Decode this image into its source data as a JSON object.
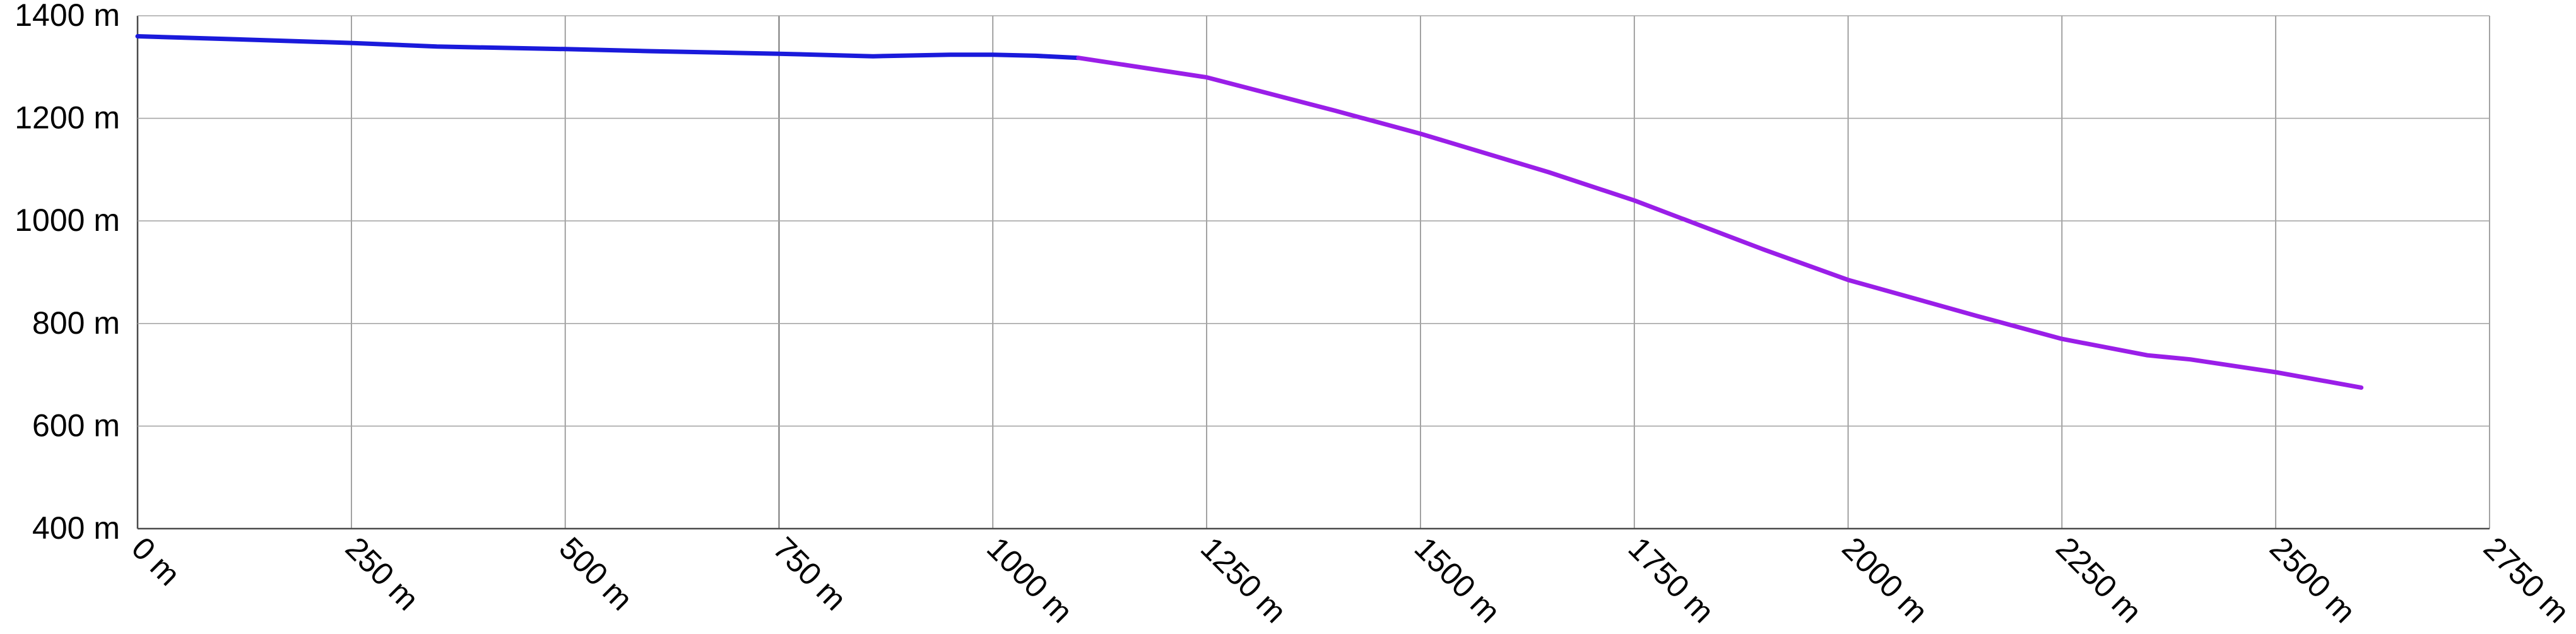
{
  "chart_data": {
    "type": "line",
    "title": "",
    "xlabel": "",
    "ylabel": "",
    "xlim": [
      0,
      2750
    ],
    "ylim": [
      400,
      1400
    ],
    "grid": true,
    "x_ticks": [
      0,
      250,
      500,
      750,
      1000,
      1250,
      1500,
      1750,
      2000,
      2250,
      2500,
      2750
    ],
    "y_ticks": [
      400,
      600,
      800,
      1000,
      1200,
      1400
    ],
    "x_tick_labels": [
      "0 m",
      "250 m",
      "500 m",
      "750 m",
      "1000 m",
      "1250 m",
      "1500 m",
      "1750 m",
      "2000 m",
      "2250 m",
      "2500 m",
      "2750 m"
    ],
    "y_tick_labels": [
      "400 m",
      "600 m",
      "800 m",
      "1000 m",
      "1200 m",
      "1400 m"
    ],
    "series": [
      {
        "color": "#1a1adb",
        "x": [
          0,
          100,
          250,
          350,
          500,
          600,
          750,
          860,
          950,
          1000,
          1050,
          1100
        ],
        "y": [
          1360,
          1355,
          1347,
          1340,
          1335,
          1331,
          1326,
          1321,
          1324,
          1324,
          1322,
          1318
        ]
      },
      {
        "color": "#9a1ee8",
        "x": [
          1100,
          1250,
          1400,
          1500,
          1650,
          1750,
          1900,
          2000,
          2150,
          2250,
          2350,
          2400,
          2500,
          2600
        ],
        "y": [
          1318,
          1280,
          1215,
          1170,
          1095,
          1040,
          945,
          885,
          815,
          770,
          738,
          730,
          705,
          675
        ]
      }
    ]
  }
}
